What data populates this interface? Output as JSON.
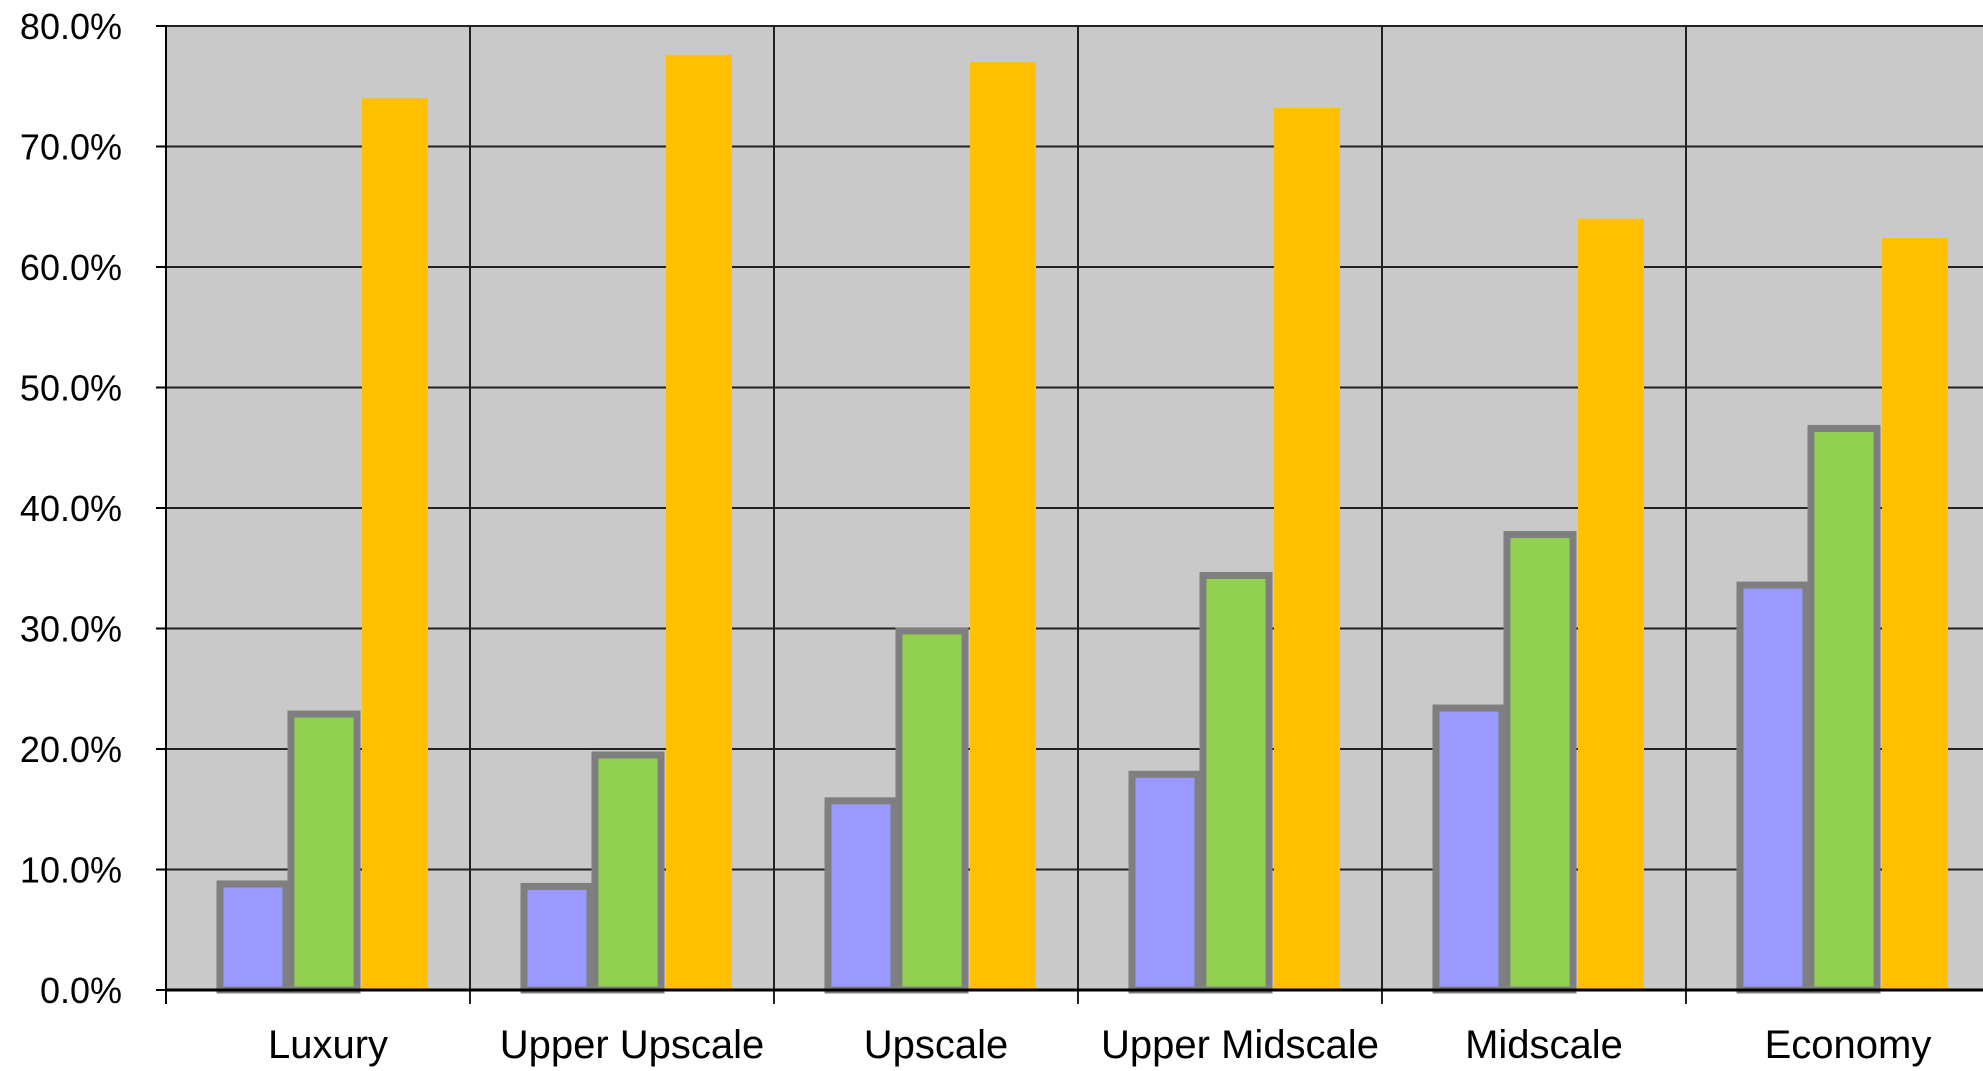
{
  "chart_data": {
    "type": "bar",
    "title": "",
    "xlabel": "",
    "ylabel": "",
    "categories": [
      "Luxury",
      "Upper Upscale",
      "Upscale",
      "Upper Midscale",
      "Midscale",
      "Economy"
    ],
    "series": [
      {
        "values": [
          8.8,
          8.6,
          15.7,
          17.9,
          23.4,
          33.6
        ]
      },
      {
        "values": [
          22.9,
          19.5,
          29.8,
          34.4,
          37.8,
          46.6
        ]
      },
      {
        "values": [
          74.0,
          77.6,
          77.0,
          73.2,
          64.0,
          62.4
        ]
      }
    ],
    "ylim": [
      0,
      80
    ],
    "yticks": [
      "0.0%",
      "10.0%",
      "20.0%",
      "30.0%",
      "40.0%",
      "50.0%",
      "60.0%",
      "70.0%",
      "80.0%"
    ],
    "grid": true,
    "legend": "none",
    "colors": {
      "plot_background": "#c9c9c9",
      "gridline": "#222222",
      "bar_outline": "#7f7f7f",
      "series": [
        "#9999ff",
        "#92d050",
        "#ffc000"
      ]
    }
  }
}
